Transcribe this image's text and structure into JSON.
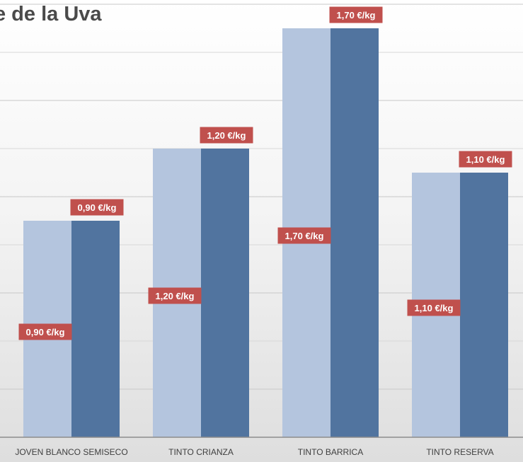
{
  "chart_data": {
    "type": "bar",
    "title": "e de la Uva",
    "categories": [
      "JOVEN BLANCO SEMISECO",
      "TINTO CRIANZA",
      "TINTO BARRICA",
      "TINTO RESERVA"
    ],
    "series": [
      {
        "color": "#b4c5de",
        "values": [
          0.9,
          1.2,
          1.7,
          1.1
        ],
        "labels": [
          "0,90 €/kg",
          "1,20 €/kg",
          "1,70 €/kg",
          "1,10 €/kg"
        ],
        "label_position": "mid"
      },
      {
        "color": "#51749f",
        "values": [
          0.9,
          1.2,
          1.7,
          1.1
        ],
        "labels": [
          "0,90 €/kg",
          "1,20 €/kg",
          "1,70 €/kg",
          "1,10 €/kg"
        ],
        "label_position": "top"
      }
    ],
    "ylim": [
      0,
      1.8
    ],
    "grid": true,
    "label_bg_color": "#c0504d",
    "legend": "none"
  }
}
